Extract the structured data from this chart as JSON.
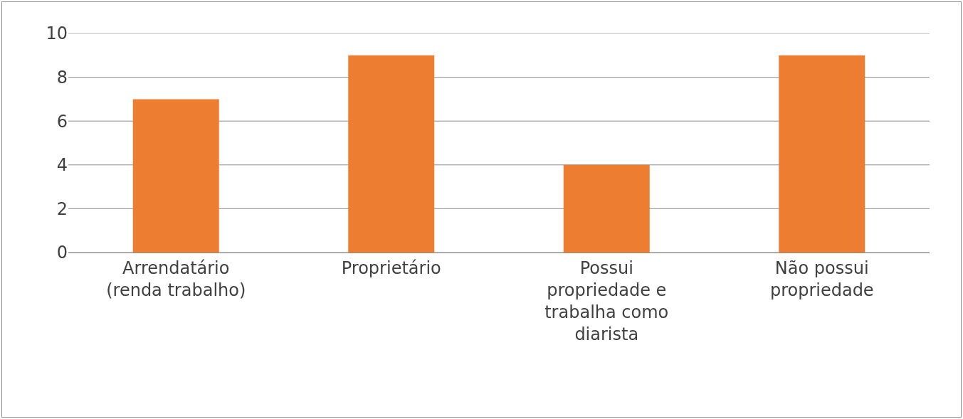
{
  "chart_data": {
    "type": "bar",
    "categories": [
      "Arrendatário (renda trabalho)",
      "Proprietário",
      "Possui propriedade e trabalha como diarista",
      "Não possui propriedade"
    ],
    "values": [
      7,
      9,
      4,
      9
    ],
    "color": "#ed7d31",
    "ylim": [
      0,
      10
    ],
    "yticks": [
      0,
      2,
      4,
      6,
      8,
      10
    ],
    "grid": "y"
  }
}
